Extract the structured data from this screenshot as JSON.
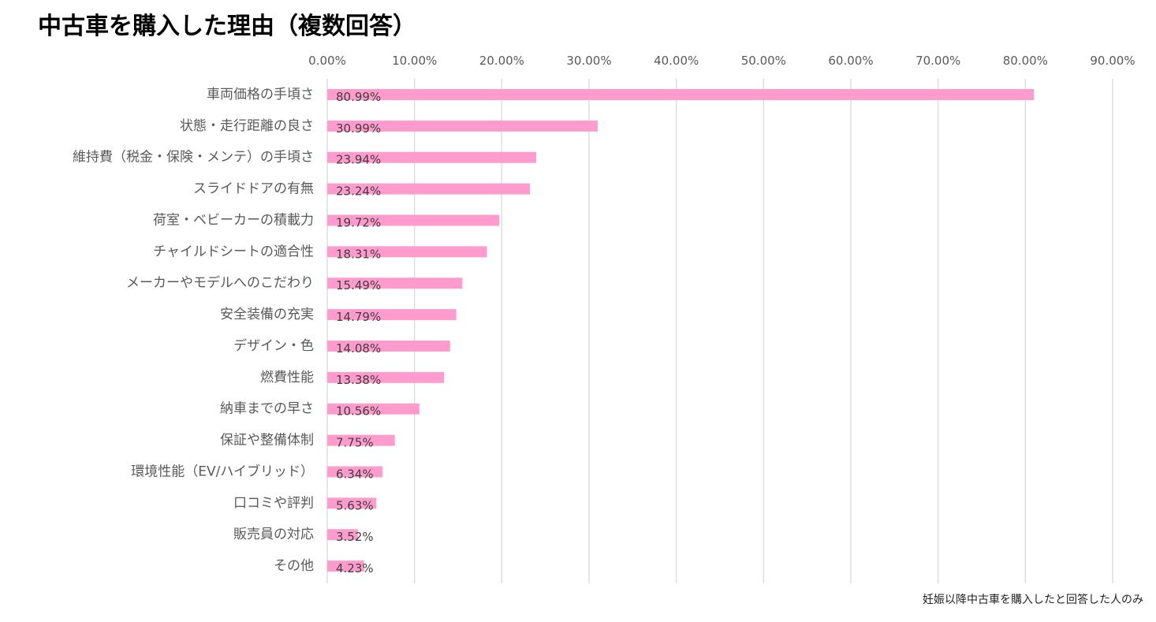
{
  "chart_data": {
    "type": "bar",
    "orientation": "horizontal",
    "title": "中古車を購入した理由（複数回答）",
    "categories": [
      "車両価格の手頃さ",
      "状態・走行距離の良さ",
      "維持費（税金・保険・メンテ）の手頃さ",
      "スライドドアの有無",
      "荷室・ベビーカーの積載力",
      "チャイルドシートの適合性",
      "メーカーやモデルへのこだわり",
      "安全装備の充実",
      "デザイン・色",
      "燃費性能",
      "納車までの早さ",
      "保証や整備体制",
      "環境性能（EV/ハイブリッド）",
      "口コミや評判",
      "販売員の対応",
      "その他"
    ],
    "values": [
      80.99,
      30.99,
      23.94,
      23.24,
      19.72,
      18.31,
      15.49,
      14.79,
      14.08,
      13.38,
      10.56,
      7.75,
      6.34,
      5.63,
      3.52,
      4.23
    ],
    "data_labels": [
      "80.99%",
      "30.99%",
      "23.94%",
      "23.24%",
      "19.72%",
      "18.31%",
      "15.49%",
      "14.79%",
      "14.08%",
      "13.38%",
      "10.56%",
      "7.75%",
      "6.34%",
      "5.63%",
      "3.52%",
      "4.23%"
    ],
    "xlim": [
      0,
      90
    ],
    "x_ticks": [
      0,
      10,
      20,
      30,
      40,
      50,
      60,
      70,
      80,
      90
    ],
    "x_tick_labels": [
      "0.00%",
      "10.00%",
      "20.00%",
      "30.00%",
      "40.00%",
      "50.00%",
      "60.00%",
      "70.00%",
      "80.00%",
      "90.00%"
    ],
    "axis_position": "top",
    "grid": true,
    "legend": "none",
    "bar_color": "#ff9ccd",
    "gridline_color": "#d9d9d9",
    "footnote": "妊娠以降中古車を購入したと回答した人のみ"
  }
}
